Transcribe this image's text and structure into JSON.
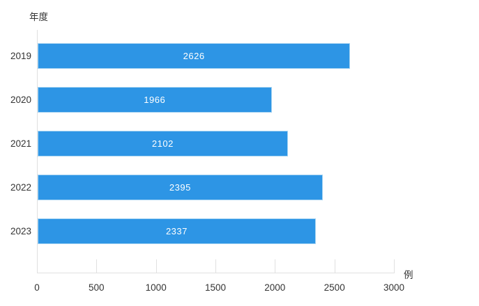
{
  "chart_data": {
    "type": "bar",
    "orientation": "horizontal",
    "ylabel": "年度",
    "x_unit_label": "例",
    "categories": [
      "2019",
      "2020",
      "2021",
      "2022",
      "2023"
    ],
    "values": [
      2626,
      1966,
      2102,
      2395,
      2337
    ],
    "xlim": [
      0,
      3000
    ],
    "x_ticks": [
      0,
      500,
      1000,
      1500,
      2000,
      2500,
      3000
    ],
    "grid": false,
    "legend": "none",
    "colors": {
      "bar": "#2D95E5",
      "bar_border": "#A9D5F2",
      "value_text": "#FFFFFF",
      "axis": "#E0E0E0",
      "text": "#333333"
    }
  }
}
